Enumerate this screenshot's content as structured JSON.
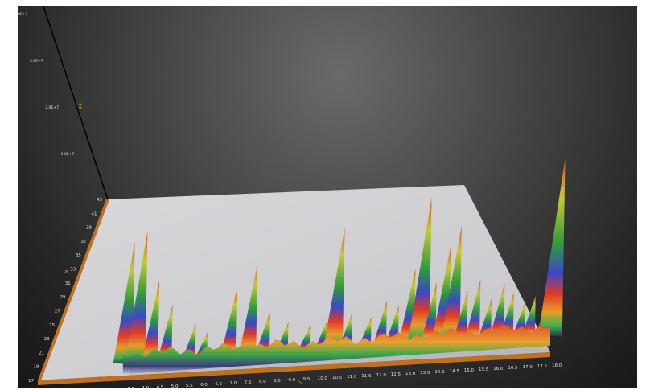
{
  "chart_data": {
    "type": "surface-3d",
    "title": "",
    "x_axis": {
      "ticks": [
        "0.5",
        "1.0",
        "1.5",
        "2.0",
        "2.5",
        "3.0",
        "3.5",
        "4.0",
        "4.5",
        "5.0",
        "5.5",
        "6.0",
        "6.5",
        "7.0",
        "7.5",
        "8.0",
        "8.5",
        "9.0",
        "9.5",
        "10.0",
        "10.5",
        "11.0",
        "11.5",
        "12.0",
        "12.5",
        "13.0",
        "13.5",
        "14.0",
        "14.5",
        "15.0",
        "15.5",
        "16.0",
        "16.5",
        "17.0",
        "17.5",
        "18.0"
      ],
      "range": [
        0.5,
        18.0
      ]
    },
    "y_axis": {
      "ticks": [
        "17",
        "19",
        "21",
        "23",
        "25",
        "27",
        "29",
        "31",
        "33",
        "35",
        "37",
        "39",
        "41",
        "43"
      ],
      "range": [
        17,
        43
      ]
    },
    "z_axis": {
      "ticks": [
        "1.0E+7",
        "2.0E+7",
        "3.0E+7",
        "4.0E+7"
      ],
      "range": [
        0,
        40000000
      ]
    },
    "colormap": [
      "#3a3a6a",
      "#4aa84a",
      "#e08a2a",
      "#e03a2a",
      "#3a4ac8",
      "#3a8a3a",
      "#c8c040",
      "#d05a2a"
    ],
    "peaks": [
      {
        "x": 0.5,
        "z": 24000000.0
      },
      {
        "x": 1.0,
        "z": 26000000.0
      },
      {
        "x": 1.6,
        "z": 16000000.0
      },
      {
        "x": 2.2,
        "z": 11000000.0
      },
      {
        "x": 3.2,
        "z": 7000000.0
      },
      {
        "x": 3.7,
        "z": 5000000.0
      },
      {
        "x": 4.8,
        "z": 13000000.0
      },
      {
        "x": 5.6,
        "z": 18000000.0
      },
      {
        "x": 6.2,
        "z": 8000000.0
      },
      {
        "x": 7.0,
        "z": 6000000.0
      },
      {
        "x": 7.9,
        "z": 5000000.0
      },
      {
        "x": 8.6,
        "z": 6000000.0
      },
      {
        "x": 9.1,
        "z": 24000000.0
      },
      {
        "x": 9.6,
        "z": 7000000.0
      },
      {
        "x": 10.4,
        "z": 6000000.0
      },
      {
        "x": 11.0,
        "z": 9000000.0
      },
      {
        "x": 11.5,
        "z": 8000000.0
      },
      {
        "x": 12.1,
        "z": 15000000.0
      },
      {
        "x": 12.6,
        "z": 29000000.0
      },
      {
        "x": 13.0,
        "z": 12000000.0
      },
      {
        "x": 13.5,
        "z": 19000000.0
      },
      {
        "x": 13.9,
        "z": 23000000.0
      },
      {
        "x": 14.3,
        "z": 10000000.0
      },
      {
        "x": 14.8,
        "z": 12000000.0
      },
      {
        "x": 15.3,
        "z": 8000000.0
      },
      {
        "x": 15.8,
        "z": 11000000.0
      },
      {
        "x": 16.2,
        "z": 9000000.0
      },
      {
        "x": 16.7,
        "z": 7000000.0
      },
      {
        "x": 17.1,
        "z": 8000000.0
      },
      {
        "x": 17.6,
        "z": 6000000.0
      },
      {
        "x": 18.0,
        "z": 35000000.0
      }
    ]
  }
}
